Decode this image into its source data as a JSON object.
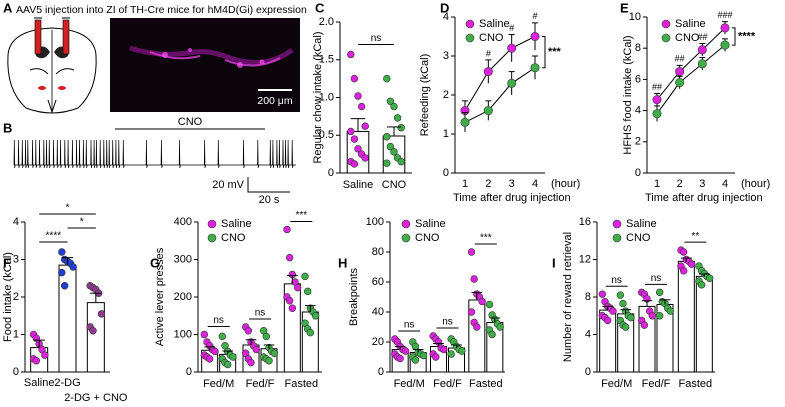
{
  "panel_a": {
    "panel": "A",
    "title": "AAV5 injection into ZI of TH-Cre mice for hM4D(Gi) expression",
    "scale_bar": "200 μm"
  },
  "panel_b": {
    "panel": "B",
    "drug": "CNO",
    "scale_voltage": "20 mV",
    "scale_time": "20 s"
  },
  "chart_data": [
    {
      "panel": "C",
      "type": "bar",
      "ylabel": "Regular chow intake (kCal)",
      "categories": [
        "Saline",
        "CNO"
      ],
      "colors": [
        "#dd22dd",
        "#3fae49"
      ],
      "values": [
        0.55,
        0.49
      ],
      "errors": [
        0.17,
        0.12
      ],
      "points": [
        [
          1.57,
          1.25,
          1.02,
          0.88,
          0.62,
          0.55,
          0.45,
          0.32,
          0.25,
          0.2,
          0.15,
          0.12
        ],
        [
          1.25,
          0.95,
          0.88,
          0.73,
          0.6,
          0.48,
          0.35,
          0.28,
          0.2,
          0.15,
          0.13
        ]
      ],
      "comparisons": [
        {
          "text": "ns",
          "between": [
            "Saline",
            "CNO"
          ]
        }
      ],
      "ylim": [
        0,
        2
      ],
      "yticks": [
        0,
        {
          "value": 0.5,
          "label": "0.5"
        },
        {
          "value": 1,
          "label": "1.0"
        },
        {
          "value": 1.5,
          "label": "1.5"
        },
        {
          "value": 2,
          "label": "2.0"
        }
      ]
    },
    {
      "panel": "D",
      "type": "line",
      "ylabel": "Refeeding (kCal)",
      "xlabel": "Time after drug injection",
      "x_unit": "(hour)",
      "categories": [
        "1",
        "2",
        "3",
        "4"
      ],
      "series": [
        {
          "name": "Saline",
          "color": "#dd22dd",
          "values": [
            1.6,
            2.6,
            3.2,
            3.5
          ],
          "errors": [
            0.25,
            0.3,
            0.35,
            0.35
          ]
        },
        {
          "name": "CNO",
          "color": "#3fae49",
          "values": [
            1.3,
            1.6,
            2.3,
            2.7
          ],
          "errors": [
            0.25,
            0.25,
            0.3,
            0.3
          ]
        }
      ],
      "point_annotations": [
        null,
        "#",
        "#",
        "#"
      ],
      "annotation": "***",
      "ylim": [
        0,
        4
      ],
      "yticks": [
        0,
        1,
        2,
        3,
        4
      ]
    },
    {
      "panel": "E",
      "type": "line",
      "ylabel": "HFHS food intake (kCal)",
      "xlabel": "Time after drug injection",
      "x_unit": "(hour)",
      "categories": [
        "1",
        "2",
        "3",
        "4"
      ],
      "series": [
        {
          "name": "Saline",
          "color": "#dd22dd",
          "values": [
            4.7,
            6.5,
            7.9,
            9.3
          ],
          "errors": [
            0.4,
            0.4,
            0.4,
            0.4
          ]
        },
        {
          "name": "CNO",
          "color": "#3fae49",
          "values": [
            3.8,
            5.8,
            7.0,
            8.2
          ],
          "errors": [
            0.5,
            0.4,
            0.4,
            0.4
          ]
        }
      ],
      "point_annotations": [
        "##",
        "##",
        "##",
        "###"
      ],
      "annotation": "****",
      "ylim": [
        0,
        10
      ],
      "yticks": [
        0,
        2,
        4,
        6,
        8,
        10
      ]
    },
    {
      "panel": "F",
      "type": "bar",
      "ylabel": "Food intake (kCal)",
      "categories": [
        "Saline",
        "2-DG",
        "2-DG + CNO"
      ],
      "colors": [
        "#dd22dd",
        "#1f3fd6",
        "#8e3c8e"
      ],
      "values": [
        0.65,
        2.85,
        1.85
      ],
      "errors": [
        0.2,
        0.2,
        0.25
      ],
      "points": [
        [
          1.0,
          0.9,
          0.75,
          0.6,
          0.45,
          0.35,
          0.3
        ],
        [
          3.2,
          3.0,
          2.95,
          2.9,
          2.8,
          2.65,
          2.3
        ],
        [
          2.3,
          2.25,
          2.2,
          2.1,
          1.55,
          1.2,
          1.1
        ]
      ],
      "comparisons": [
        {
          "text": "****",
          "between": [
            "Saline",
            "2-DG"
          ]
        },
        {
          "text": "*",
          "between": [
            "2-DG",
            "2-DG + CNO"
          ]
        },
        {
          "text": "*",
          "between": [
            "Saline",
            "2-DG + CNO"
          ]
        }
      ],
      "ylim": [
        0,
        4
      ],
      "yticks": [
        0,
        1,
        2,
        3,
        4
      ]
    },
    {
      "panel": "G",
      "type": "bar",
      "ylabel": "Active lever presses",
      "categories": [
        "Fed/M",
        "Fed/F",
        "Fasted"
      ],
      "series": [
        {
          "name": "Saline",
          "color": "#dd22dd",
          "values": [
            58,
            72,
            235
          ],
          "errors": [
            9,
            14,
            22
          ],
          "points": [
            [
              100,
              80,
              70,
              60,
              55,
              45,
              40,
              35
            ],
            [
              120,
              110,
              80,
              70,
              60,
              50,
              35,
              25
            ],
            [
              380,
              305,
              260,
              240,
              225,
              200,
              190,
              170
            ]
          ]
        },
        {
          "name": "CNO",
          "color": "#3fae49",
          "values": [
            47,
            62,
            160
          ],
          "errors": [
            9,
            10,
            17
          ],
          "points": [
            [
              95,
              70,
              55,
              45,
              40,
              35,
              25,
              20
            ],
            [
              110,
              95,
              65,
              55,
              50,
              40,
              35,
              30
            ],
            [
              255,
              215,
              170,
              160,
              150,
              130,
              115,
              105
            ]
          ]
        }
      ],
      "annotations": [
        "ns",
        "ns",
        "***"
      ],
      "ylim": [
        0,
        400
      ],
      "yticks": [
        0,
        100,
        200,
        300,
        400
      ]
    },
    {
      "panel": "H",
      "type": "bar",
      "ylabel": "Breakpoints",
      "categories": [
        "Fed/M",
        "Fed/F",
        "Fasted"
      ],
      "series": [
        {
          "name": "Saline",
          "color": "#dd22dd",
          "values": [
            15,
            17,
            48
          ],
          "errors": [
            2,
            2,
            5
          ],
          "points": [
            [
              22,
              20,
              17,
              15,
              14,
              12,
              10,
              9
            ],
            [
              24,
              22,
              20,
              16,
              15,
              12,
              10
            ],
            [
              80,
              62,
              52,
              50,
              47,
              40,
              33,
              30
            ]
          ]
        },
        {
          "name": "CNO",
          "color": "#3fae49",
          "values": [
            13,
            16,
            33
          ],
          "errors": [
            2,
            2,
            3
          ],
          "points": [
            [
              20,
              17,
              13,
              12,
              11,
              10,
              8
            ],
            [
              22,
              20,
              17,
              15,
              14,
              12
            ],
            [
              45,
              38,
              35,
              32,
              30,
              28,
              25
            ]
          ]
        }
      ],
      "annotations": [
        "ns",
        "ns",
        "***"
      ],
      "ylim": [
        0,
        100
      ],
      "yticks": [
        0,
        20,
        40,
        60,
        80,
        100
      ]
    },
    {
      "panel": "I",
      "type": "bar",
      "ylabel": "Number of reward retrieval",
      "categories": [
        "Fed/M",
        "Fed/F",
        "Fasted"
      ],
      "series": [
        {
          "name": "Saline",
          "color": "#dd22dd",
          "values": [
            6.6,
            7.0,
            11.8
          ],
          "errors": [
            0.4,
            0.6,
            0.35
          ],
          "points": [
            [
              8.3,
              7.5,
              7,
              6.8,
              6.5,
              6,
              5.8,
              5.5
            ],
            [
              8.5,
              8.3,
              7.8,
              6.5,
              6,
              5.5,
              5
            ],
            [
              13,
              12.8,
              12,
              11.8,
              11.5,
              11.3,
              10.8
            ]
          ]
        },
        {
          "name": "CNO",
          "color": "#3fae49",
          "values": [
            6.2,
            7.2,
            10.2
          ],
          "errors": [
            0.45,
            0.5,
            0.25
          ],
          "points": [
            [
              8.2,
              7.3,
              6.5,
              6,
              5.8,
              5.5,
              5,
              4.8
            ],
            [
              8.5,
              7.5,
              7.3,
              6.8,
              6.5,
              6
            ],
            [
              11.3,
              10.8,
              10.5,
              10.2,
              10,
              9.7,
              9.3
            ]
          ]
        }
      ],
      "annotations": [
        "ns",
        "ns",
        "**"
      ],
      "ylim": [
        0,
        16
      ],
      "yticks": [
        0,
        4,
        8,
        12,
        16
      ]
    }
  ]
}
